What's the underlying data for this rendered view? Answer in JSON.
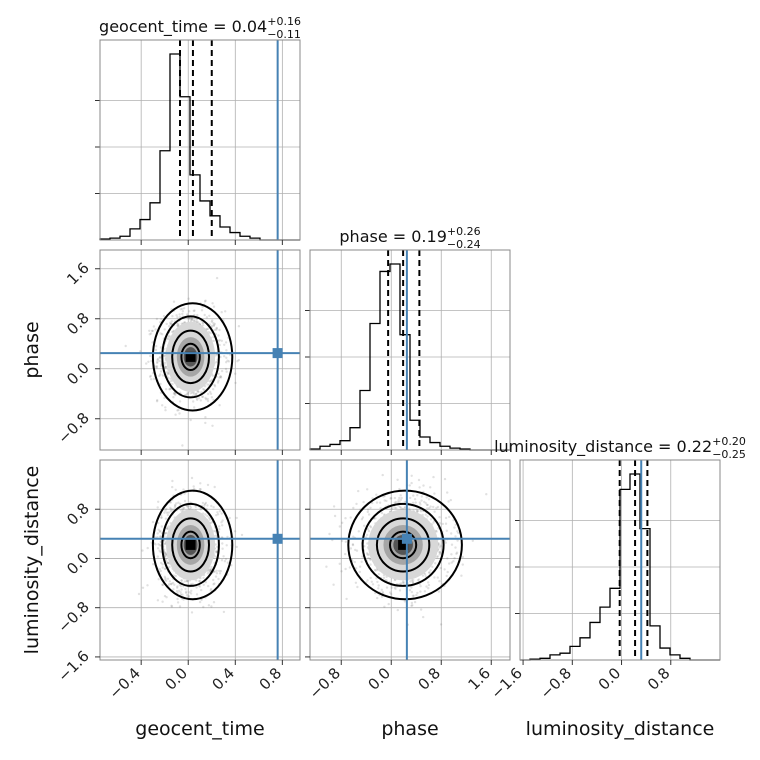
{
  "chart_data": {
    "type": "corner",
    "parameters": [
      {
        "name": "geocent_time",
        "title": {
          "label": "geocent_time",
          "value": "0.04",
          "plus": "+0.16",
          "minus": "−0.11"
        },
        "range": [
          -0.75,
          0.95
        ],
        "ticks": [
          -0.4,
          0.0,
          0.4,
          0.8
        ],
        "tick_labels": [
          "−0.4",
          "0.0",
          "0.4",
          "0.8"
        ],
        "truth": 0.76,
        "quantiles": [
          -0.07,
          0.04,
          0.2
        ],
        "hist": {
          "edges": [
            -0.75,
            -0.665,
            -0.58,
            -0.495,
            -0.41,
            -0.325,
            -0.24,
            -0.155,
            -0.07,
            0.015,
            0.1,
            0.185,
            0.27,
            0.355,
            0.44,
            0.525,
            0.61,
            0.695,
            0.78,
            0.865,
            0.95
          ],
          "counts": [
            0.5,
            1,
            2,
            6,
            11,
            20,
            48,
            100,
            77,
            35,
            21,
            13,
            7,
            4,
            2,
            1,
            0,
            0,
            0,
            0
          ]
        }
      },
      {
        "name": "phase",
        "title": {
          "label": "phase",
          "value": "0.19",
          "plus": "+0.26",
          "minus": "−0.24"
        },
        "range": [
          -1.3,
          1.9
        ],
        "ticks": [
          -0.8,
          0.0,
          0.8,
          1.6
        ],
        "tick_labels": [
          "−0.8",
          "0.0",
          "0.8",
          "1.6"
        ],
        "truth": 0.25,
        "quantiles": [
          -0.05,
          0.19,
          0.45
        ],
        "hist": {
          "edges": [
            -1.3,
            -1.14,
            -0.98,
            -0.82,
            -0.66,
            -0.5,
            -0.34,
            -0.18,
            -0.02,
            0.14,
            0.3,
            0.46,
            0.62,
            0.78,
            0.94,
            1.1,
            1.26,
            1.42,
            1.58,
            1.74,
            1.9
          ],
          "counts": [
            0.5,
            2,
            3,
            5,
            12,
            32,
            68,
            96,
            100,
            62,
            16,
            7,
            4,
            2,
            1,
            0.5,
            0,
            0,
            0,
            0
          ]
        }
      },
      {
        "name": "luminosity_distance",
        "title": {
          "label": "luminosity_distance",
          "value": "0.22",
          "plus": "+0.20",
          "minus": "−0.25"
        },
        "range": [
          -1.65,
          1.6
        ],
        "ticks": [
          -1.6,
          -0.8,
          0.0,
          0.8
        ],
        "tick_labels": [
          "−1.6",
          "−0.8",
          "0.0",
          "0.8"
        ],
        "truth": 0.32,
        "quantiles": [
          -0.03,
          0.22,
          0.42
        ],
        "hist": {
          "edges": [
            -1.65,
            -1.4875,
            -1.325,
            -1.1625,
            -1.0,
            -0.8375,
            -0.675,
            -0.5125,
            -0.35,
            -0.1875,
            -0.025,
            0.1375,
            0.3,
            0.4625,
            0.625,
            0.7875,
            0.95,
            1.1125,
            1.275,
            1.4375,
            1.6
          ],
          "counts": [
            0,
            0.5,
            1,
            3,
            4,
            8,
            13,
            22,
            31,
            42,
            100,
            109,
            77,
            20,
            7,
            3,
            1,
            0,
            0,
            0
          ]
        }
      }
    ],
    "contour_levels": [
      "0.5σ",
      "1σ",
      "1.5σ",
      "2σ"
    ]
  }
}
